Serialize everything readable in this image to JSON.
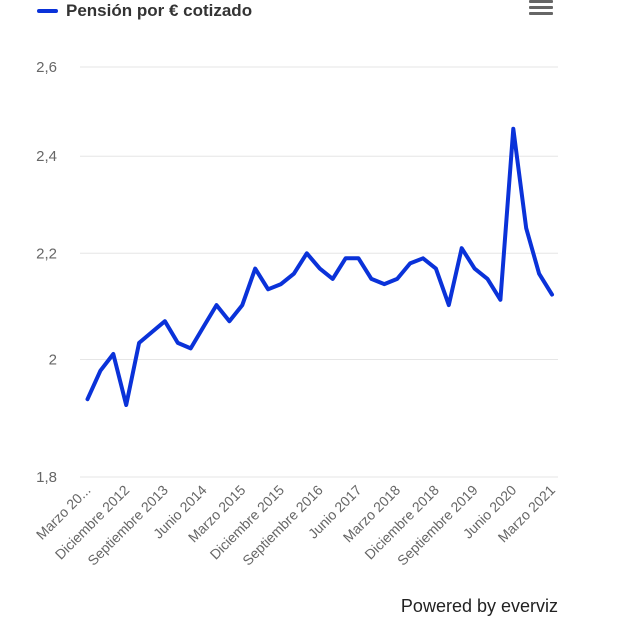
{
  "chart_data": {
    "type": "line",
    "title": "",
    "xlabel": "",
    "ylabel": "",
    "y_scale": "log",
    "ylim": [
      1.8,
      2.6
    ],
    "y_ticks": [
      "1,8",
      "2",
      "2,2",
      "2,4",
      "2,6"
    ],
    "y_tick_values": [
      1.8,
      2.0,
      2.2,
      2.4,
      2.6
    ],
    "grid": true,
    "legend_placement": "top-left",
    "x_tick_labels": [
      "Marzo 20...",
      "Diciembre 2012",
      "Septiembre 2013",
      "Junio 2014",
      "Marzo 2015",
      "Diciembre 2015",
      "Septiembre 2016",
      "Junio 2017",
      "Marzo 2018",
      "Diciembre 2018",
      "Septiembre 2019",
      "Junio 2020",
      "Marzo 2021"
    ],
    "x_tick_every": 3,
    "series": [
      {
        "name": "Pensión por € cotizado",
        "color": "#0a32d9",
        "values": [
          1.93,
          1.98,
          2.01,
          1.92,
          2.03,
          2.05,
          2.07,
          2.03,
          2.02,
          2.06,
          2.1,
          2.07,
          2.1,
          2.17,
          2.13,
          2.14,
          2.16,
          2.2,
          2.17,
          2.15,
          2.19,
          2.19,
          2.15,
          2.14,
          2.15,
          2.18,
          2.19,
          2.17,
          2.1,
          2.21,
          2.17,
          2.15,
          2.11,
          2.46,
          2.25,
          2.16,
          2.12
        ]
      }
    ]
  },
  "legend": {
    "label": "Pensión por € cotizado"
  },
  "menu_icon": "hamburger-menu-icon",
  "credit": "Powered by everviz"
}
